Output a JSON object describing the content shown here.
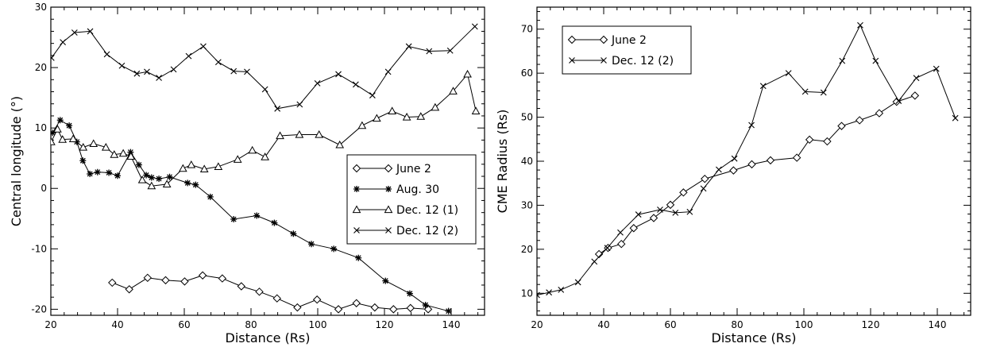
{
  "chart_data": [
    {
      "type": "line",
      "xlabel": "Distance (Rs)",
      "ylabel": "Central longitude (°)",
      "xlim": [
        20,
        150
      ],
      "ylim": [
        -21,
        30
      ],
      "xticks": [
        20,
        40,
        60,
        80,
        100,
        120,
        140
      ],
      "yticks": [
        -20,
        -10,
        0,
        10,
        20,
        30
      ],
      "legend_position": "center-right",
      "series": [
        {
          "name": "June 2",
          "marker": "diamond",
          "x": [
            38.4,
            43.5,
            49.0,
            54.4,
            60.1,
            65.5,
            71.4,
            77.1,
            82.5,
            87.8,
            93.9,
            99.8,
            106.2,
            111.6,
            117.1,
            122.7,
            127.8,
            133.1
          ],
          "y": [
            -15.6,
            -16.7,
            -14.8,
            -15.2,
            -15.4,
            -14.4,
            -14.9,
            -16.2,
            -17.1,
            -18.2,
            -19.7,
            -18.4,
            -20.0,
            -19.0,
            -19.7,
            -20.0,
            -19.8,
            -20.0
          ]
        },
        {
          "name": "Aug. 30",
          "marker": "asterisk",
          "x": [
            20.5,
            22.8,
            25.5,
            27.8,
            29.6,
            31.7,
            34.0,
            37.4,
            40.0,
            43.9,
            46.4,
            48.6,
            50.2,
            52.4,
            55.6,
            61.0,
            63.4,
            67.8,
            74.8,
            81.7,
            87.0,
            92.7,
            98.1,
            104.8,
            112.2,
            120.3,
            127.6,
            132.3,
            139.2
          ],
          "y": [
            9.2,
            11.3,
            10.4,
            7.7,
            4.6,
            2.4,
            2.7,
            2.6,
            2.1,
            6.0,
            3.9,
            2.2,
            1.8,
            1.6,
            1.9,
            0.9,
            0.6,
            -1.4,
            -5.1,
            -4.5,
            -5.7,
            -7.5,
            -9.2,
            -10.0,
            -11.5,
            -15.3,
            -17.4,
            -19.3,
            -20.3
          ]
        },
        {
          "name": "Dec. 12 (1)",
          "marker": "triangle",
          "x": [
            20.1,
            22.0,
            23.5,
            26.7,
            29.7,
            32.8,
            36.5,
            39.0,
            41.7,
            44.0,
            47.4,
            50.2,
            54.8,
            59.6,
            62.1,
            66.0,
            70.2,
            76.0,
            80.4,
            84.2,
            88.7,
            94.5,
            100.4,
            106.6,
            113.3,
            117.7,
            122.3,
            126.7,
            130.9,
            135.2,
            140.6,
            144.9,
            147.4
          ],
          "y": [
            7.7,
            9.8,
            8.1,
            8.2,
            6.8,
            7.4,
            6.8,
            5.6,
            5.8,
            5.3,
            1.4,
            0.4,
            0.7,
            3.3,
            3.9,
            3.2,
            3.6,
            4.8,
            6.3,
            5.2,
            8.7,
            8.9,
            8.9,
            7.2,
            10.4,
            11.6,
            12.8,
            11.8,
            11.9,
            13.4,
            16.1,
            18.9,
            12.8
          ]
        },
        {
          "name": "Dec. 12 (2)",
          "marker": "cross",
          "x": [
            20.2,
            23.6,
            27.1,
            31.8,
            36.8,
            41.3,
            45.8,
            48.8,
            52.4,
            56.8,
            61.3,
            65.7,
            70.2,
            74.8,
            78.8,
            84.2,
            87.9,
            94.6,
            99.9,
            106.2,
            111.4,
            116.4,
            121.1,
            127.3,
            133.4,
            139.7,
            147.1
          ],
          "y": [
            21.6,
            24.2,
            25.8,
            26.0,
            22.2,
            20.3,
            19.0,
            19.3,
            18.3,
            19.7,
            21.9,
            23.5,
            20.9,
            19.4,
            19.3,
            16.4,
            13.2,
            13.9,
            17.4,
            18.9,
            17.2,
            15.4,
            19.3,
            23.5,
            22.7,
            22.8,
            26.8
          ]
        }
      ]
    },
    {
      "type": "line",
      "xlabel": "Distance (Rs)",
      "ylabel": "CME Radius (Rs)",
      "xlim": [
        20,
        150
      ],
      "ylim": [
        5,
        75
      ],
      "xticks": [
        20,
        40,
        60,
        80,
        100,
        120,
        140
      ],
      "yticks": [
        10,
        20,
        30,
        40,
        50,
        60,
        70
      ],
      "legend_position": "top-left",
      "series": [
        {
          "name": "June 2",
          "marker": "diamond",
          "x": [
            38.6,
            41.3,
            45.3,
            49.0,
            55.0,
            60.0,
            63.9,
            70.3,
            78.9,
            84.4,
            90.0,
            97.9,
            101.7,
            107.0,
            111.3,
            116.7,
            122.6,
            127.8,
            133.3
          ],
          "y": [
            18.9,
            20.3,
            21.2,
            24.8,
            27.1,
            30.1,
            32.9,
            36.0,
            37.9,
            39.3,
            40.2,
            40.8,
            44.9,
            44.5,
            48.0,
            49.3,
            50.9,
            53.5,
            54.9
          ]
        },
        {
          "name": "Dec. 12 (2)",
          "marker": "cross",
          "x": [
            20.0,
            23.6,
            27.2,
            32.3,
            37.2,
            41.1,
            45.0,
            50.4,
            56.9,
            61.5,
            65.8,
            69.9,
            74.5,
            79.2,
            84.3,
            87.8,
            95.4,
            100.4,
            105.9,
            111.5,
            116.9,
            121.5,
            128.4,
            133.7,
            139.7,
            145.4
          ],
          "y": [
            9.6,
            10.2,
            10.8,
            12.5,
            17.2,
            20.3,
            23.8,
            27.9,
            29.0,
            28.3,
            28.5,
            33.8,
            38.1,
            40.6,
            48.2,
            57.1,
            60.0,
            55.8,
            55.6,
            62.8,
            70.9,
            62.8,
            53.7,
            58.9,
            61.0,
            49.8
          ]
        }
      ]
    }
  ]
}
